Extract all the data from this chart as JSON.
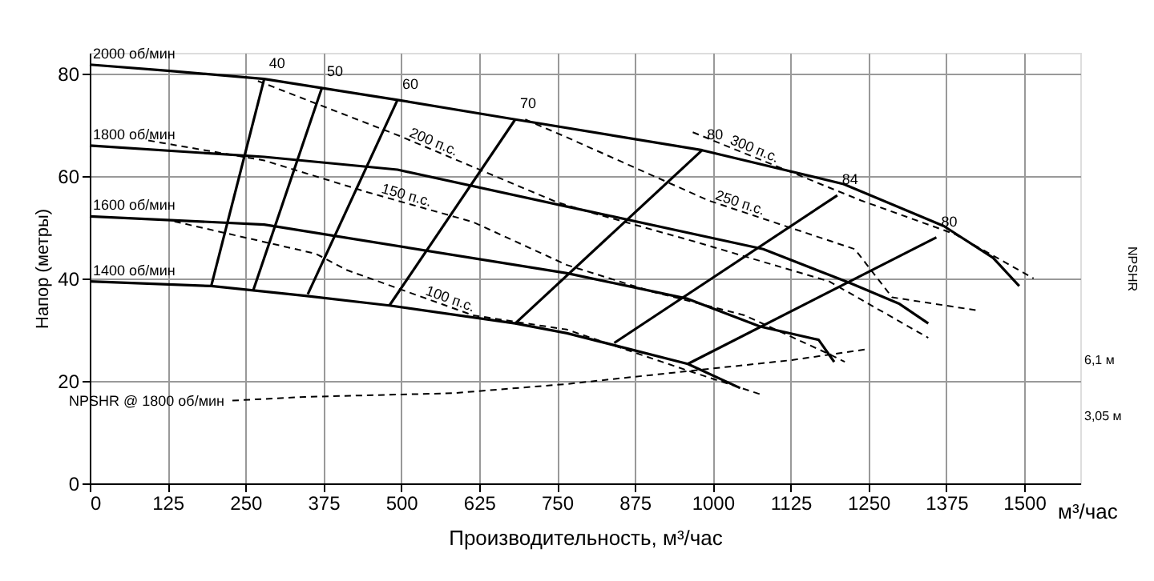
{
  "chart_data": {
    "type": "line",
    "xlabel": "Производительность, м³/час",
    "ylabel": "Напор (метры)",
    "y2label": "NPSHR",
    "annotations": [
      "м³/час"
    ],
    "xlim": [
      0,
      1590
    ],
    "ylim": [
      0,
      84
    ],
    "y2lim": [
      -0.6,
      22.8
    ],
    "xticks": [
      0,
      125,
      250,
      375,
      500,
      625,
      750,
      875,
      1000,
      1125,
      1250,
      1375,
      1500
    ],
    "yticks": [
      0,
      20,
      40,
      60,
      80
    ],
    "y2ticks": [
      {
        "value": 3.05,
        "label": "3,05 м"
      },
      {
        "value": 6.1,
        "label": "6,1 м"
      }
    ],
    "grid": true,
    "series": [
      {
        "name": "2000 об/мин",
        "color": "#000000",
        "line_style": "solid",
        "x": [
          0,
          125,
          280,
          494,
          683,
          983,
          1210,
          1371,
          1450,
          1492
        ],
        "values": [
          81.7,
          80.5,
          78.9,
          74.8,
          71,
          65,
          58.4,
          50.2,
          44,
          38.5
        ]
      },
      {
        "name": "1800 об/мин",
        "color": "#000000",
        "line_style": "solid",
        "x": [
          0,
          280,
          494,
          766,
          1081,
          1220,
          1300,
          1346
        ],
        "values": [
          65.9,
          63.7,
          61.2,
          54,
          45.7,
          39.1,
          35,
          31.2
        ]
      },
      {
        "name": "1600 об/мин",
        "color": "#000000",
        "line_style": "solid",
        "x": [
          0,
          280,
          766,
          960,
          1076,
          1170,
          1195
        ],
        "values": [
          52.1,
          50.5,
          41,
          36,
          30.6,
          28,
          23.7
        ]
      },
      {
        "name": "1400 об/мин",
        "color": "#000000",
        "line_style": "solid",
        "x": [
          0,
          195,
          346,
          481,
          683,
          766,
          960,
          1044
        ],
        "values": [
          39.4,
          38.5,
          36.6,
          34.7,
          31.2,
          29.3,
          23.3,
          18.6
        ]
      },
      {
        "name": "40",
        "color": "#000000",
        "line_style": "solid",
        "x": [
          195,
          280
        ],
        "values": [
          38.5,
          78.9
        ]
      },
      {
        "name": "50",
        "color": "#000000",
        "line_style": "solid",
        "x": [
          262,
          373
        ],
        "values": [
          37.5,
          77.3
        ]
      },
      {
        "name": "60",
        "color": "#000000",
        "line_style": "solid",
        "x": [
          350,
          494
        ],
        "values": [
          36.9,
          74.8
        ]
      },
      {
        "name": "70",
        "color": "#000000",
        "line_style": "solid",
        "x": [
          481,
          683
        ],
        "values": [
          34.7,
          71
        ]
      },
      {
        "name": "80",
        "color": "#000000",
        "line_style": "solid",
        "x": [
          683,
          983
        ],
        "values": [
          31.2,
          65
        ]
      },
      {
        "name": "84",
        "color": "#000000",
        "line_style": "solid",
        "x": [
          842,
          1200
        ],
        "values": [
          27.4,
          56.2
        ]
      },
      {
        "name": "80",
        "color": "#000000",
        "line_style": "solid",
        "x": [
          960,
          1359
        ],
        "values": [
          23.3,
          48
        ]
      },
      {
        "name": "100 п.с.",
        "color": "#000000",
        "line_style": "dashed",
        "x": [
          136,
          363,
          413,
          615,
          766,
          960,
          1076
        ],
        "values": [
          51.1,
          44.8,
          41.6,
          32.8,
          30,
          22,
          17.4
        ]
      },
      {
        "name": "150 п.с.",
        "color": "#000000",
        "line_style": "dashed",
        "x": [
          94,
          280,
          446,
          615,
          766,
          900,
          1051,
          1187,
          1212
        ],
        "values": [
          66.9,
          63,
          56.8,
          51,
          42.6,
          37.5,
          32.8,
          25.2,
          23.7
        ]
      },
      {
        "name": "200 п.с.",
        "color": "#000000",
        "line_style": "dashed",
        "x": [
          270,
          497,
          749,
          809,
          976,
          1187,
          1346
        ],
        "values": [
          78.5,
          67.8,
          54.9,
          52.7,
          47,
          39.4,
          28.4
        ]
      },
      {
        "name": "250 п.с.",
        "color": "#000000",
        "line_style": "dashed",
        "x": [
          699,
          766,
          993,
          1228,
          1288,
          1422
        ],
        "values": [
          71,
          67.5,
          55.2,
          45.7,
          36.3,
          33.8
        ]
      },
      {
        "name": "300 п.с.",
        "color": "#000000",
        "line_style": "dashed",
        "x": [
          968,
          1238,
          1389,
          1515
        ],
        "values": [
          68.5,
          55.2,
          48.6,
          40
        ]
      },
      {
        "name": "NPSHR @ 1800 об/мин",
        "color": "#000000",
        "line_style": "dashed",
        "axis": "y2",
        "x": [
          229,
          345,
          582,
          766,
          960,
          1127,
          1250
        ],
        "values": [
          3.9,
          4.1,
          4.3,
          4.8,
          5.5,
          6.1,
          6.7
        ]
      }
    ]
  }
}
